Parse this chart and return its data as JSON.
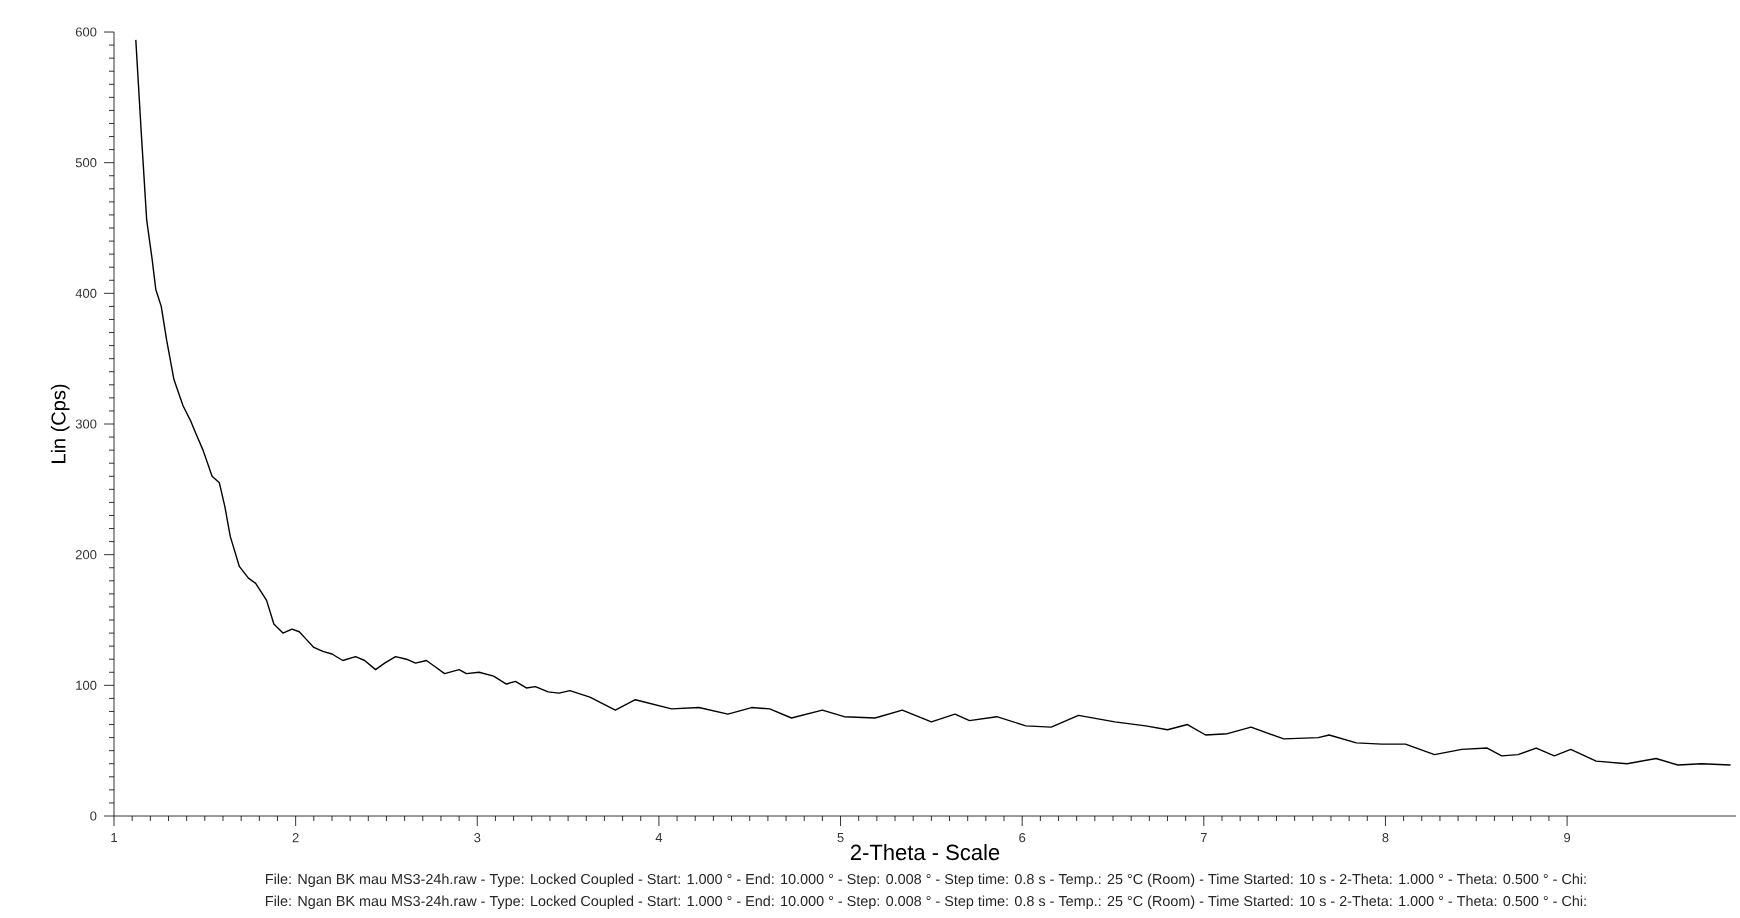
{
  "chart_data": {
    "type": "line",
    "xlabel": "2-Theta - Scale",
    "ylabel": "Lin (Cps)",
    "xlim": [
      1,
      9.93
    ],
    "ylim": [
      0,
      600
    ],
    "xticks": [
      1,
      2,
      3,
      4,
      5,
      6,
      7,
      8,
      9
    ],
    "yticks": [
      0,
      100,
      200,
      300,
      400,
      500,
      600
    ],
    "grid": false,
    "line_style": "solid",
    "series": [
      {
        "color": "#000000",
        "x": [
          1.12,
          1.15,
          1.18,
          1.21,
          1.23,
          1.26,
          1.29,
          1.33,
          1.38,
          1.42,
          1.45,
          1.49,
          1.54,
          1.58,
          1.61,
          1.64,
          1.69,
          1.74,
          1.78,
          1.84,
          1.88,
          1.93,
          1.98,
          2.02,
          2.06,
          2.1,
          2.15,
          2.2,
          2.26,
          2.33,
          2.38,
          2.44,
          2.49,
          2.55,
          2.61,
          2.66,
          2.72,
          2.77,
          2.82,
          2.9,
          2.94,
          3.01,
          3.09,
          3.16,
          3.21,
          3.27,
          3.32,
          3.39,
          3.45,
          3.51,
          3.62,
          3.76,
          3.87,
          4.07,
          4.22,
          4.38,
          4.51,
          4.61,
          4.73,
          4.9,
          5.02,
          5.19,
          5.34,
          5.5,
          5.63,
          5.71,
          5.86,
          6.02,
          6.16,
          6.31,
          6.51,
          6.68,
          6.8,
          6.91,
          7.01,
          7.13,
          7.26,
          7.44,
          7.63,
          7.69,
          7.84,
          7.98,
          8.11,
          8.27,
          8.42,
          8.56,
          8.64,
          8.73,
          8.83,
          8.93,
          9.02,
          9.16,
          9.33,
          9.49,
          9.61,
          9.74,
          9.9
        ],
        "values": [
          594,
          523,
          456,
          426,
          403,
          390,
          364,
          334,
          314,
          303,
          293,
          280,
          260,
          255,
          237,
          214,
          191,
          182,
          178,
          165,
          147,
          140,
          143,
          141,
          135,
          129,
          126,
          124,
          119,
          122,
          119,
          112,
          117,
          122,
          120,
          117,
          119,
          114,
          109,
          112,
          109,
          110,
          107,
          101,
          103,
          98,
          99,
          95,
          94,
          96,
          91,
          81,
          89,
          82,
          83,
          78,
          83,
          82,
          75,
          81,
          76,
          75,
          81,
          72,
          78,
          73,
          76,
          69,
          68,
          77,
          72,
          69,
          66,
          70,
          62,
          63,
          68,
          59,
          60,
          62,
          56,
          55,
          55,
          47,
          51,
          52,
          46,
          47,
          52,
          46,
          51,
          42,
          40,
          44,
          39,
          40,
          39
        ]
      }
    ],
    "annotations": [
      "File: Ngan BK mau MS3-24h.raw - Type: Locked Coupled - Start: 1.000 ° - End: 10.000 ° - Step: 0.008 ° - Step time: 0.8 s - Temp.: 25 °C (Room) - Time Started: 10 s - 2-Theta: 1.000 ° - Theta: 0.500 ° - Chi:",
      "File: Ngan BK mau MS3-24h.raw - Type: Locked Coupled - Start: 1.000 ° - End: 10.000 ° - Step: 0.008 ° - Step time: 0.8 s - Temp.: 25 °C (Room) - Time Started: 10 s - 2-Theta: 1.000 ° - Theta: 0.500 ° - Chi:"
    ]
  }
}
